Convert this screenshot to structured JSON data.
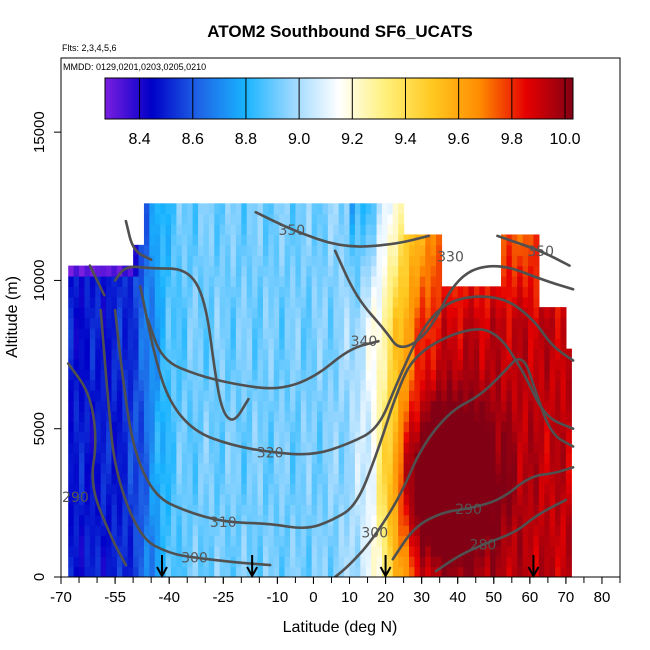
{
  "chart_data": {
    "type": "heatmap",
    "title": "ATOM2 Southbound SF6_UCATS",
    "notes": [
      "Flts: 2,3,4,5,6",
      "MMDD: 0129,0201,0203,0205,0210"
    ],
    "xlabel": "Latitude (deg N)",
    "ylabel": "Altitude (m)",
    "xlim": [
      -70,
      85
    ],
    "ylim": [
      0,
      17500
    ],
    "x_ticks": [
      -70,
      -55,
      -40,
      -25,
      -10,
      0,
      10,
      20,
      30,
      40,
      50,
      60,
      70,
      80
    ],
    "y_ticks": [
      0,
      5000,
      10000,
      15000
    ],
    "colorbar": {
      "ticks": [
        "8.4",
        "8.6",
        "8.8",
        "9.0",
        "9.2",
        "9.4",
        "9.6",
        "9.8",
        "10.0"
      ],
      "range": [
        8.27,
        10.03
      ],
      "placement": "top"
    },
    "colors": {
      "cmap": [
        "#7a1ee0",
        "#0000c8",
        "#1e64e6",
        "#19b4ff",
        "#9ad7ff",
        "#ffffff",
        "#fff07a",
        "#ffc820",
        "#ff8c00",
        "#e60000",
        "#820014"
      ],
      "contour": "#505050",
      "arrow": "#000000"
    },
    "markers_lat": [
      -42,
      -17,
      20,
      61
    ],
    "contours": [
      {
        "label": "350",
        "label_at": [
          -6,
          11700
        ],
        "points": [
          [
            -16,
            12300
          ],
          [
            -6,
            11700
          ],
          [
            8,
            11100
          ],
          [
            22,
            11200
          ],
          [
            32,
            11500
          ]
        ]
      },
      {
        "label": "350",
        "label_at": [
          63,
          11000
        ],
        "points": [
          [
            51,
            11500
          ],
          [
            63,
            11000
          ],
          [
            71,
            10500
          ]
        ]
      },
      {
        "label": "330",
        "label_at": [
          38,
          10800
        ],
        "points": [
          [
            6,
            11000
          ],
          [
            12,
            9400
          ],
          [
            20,
            8300
          ],
          [
            24,
            7600
          ],
          [
            32,
            8200
          ],
          [
            40,
            10200
          ],
          [
            51,
            10600
          ],
          [
            64,
            10000
          ],
          [
            72,
            9700
          ]
        ]
      },
      {
        "label": "340",
        "label_at": [
          14,
          7950
        ],
        "points": [
          [
            -46,
            8700
          ],
          [
            -42,
            7300
          ],
          [
            -32,
            6800
          ],
          [
            -22,
            6500
          ],
          [
            -10,
            6300
          ],
          [
            0,
            6700
          ],
          [
            10,
            7700
          ],
          [
            18,
            7950
          ]
        ]
      },
      {
        "label": "320",
        "label_at": [
          -12,
          4200
        ],
        "points": [
          [
            -48,
            9800
          ],
          [
            -44,
            7400
          ],
          [
            -40,
            5900
          ],
          [
            -33,
            4900
          ],
          [
            -23,
            4450
          ],
          [
            -12,
            4200
          ],
          [
            0,
            4100
          ],
          [
            10,
            4500
          ],
          [
            18,
            5000
          ],
          [
            23,
            6500
          ],
          [
            30,
            8400
          ],
          [
            38,
            9400
          ],
          [
            52,
            9500
          ],
          [
            61,
            8700
          ],
          [
            66,
            7800
          ],
          [
            72,
            7300
          ]
        ]
      },
      {
        "label": "310",
        "label_at": [
          -25,
          1850
        ],
        "points": [
          [
            -55,
            9000
          ],
          [
            -53,
            6800
          ],
          [
            -50,
            4300
          ],
          [
            -44,
            2700
          ],
          [
            -35,
            2200
          ],
          [
            -25,
            1850
          ],
          [
            -12,
            1800
          ],
          [
            -2,
            1600
          ],
          [
            5,
            1900
          ],
          [
            12,
            2400
          ],
          [
            18,
            4300
          ],
          [
            23,
            6200
          ],
          [
            28,
            7500
          ],
          [
            40,
            8300
          ],
          [
            50,
            8400
          ],
          [
            58,
            7000
          ],
          [
            64,
            5400
          ],
          [
            72,
            5000
          ]
        ]
      },
      {
        "label": "300",
        "label_at": [
          -33,
          650
        ],
        "points": [
          [
            -59,
            9000
          ],
          [
            -57,
            6000
          ],
          [
            -55,
            3500
          ],
          [
            -48,
            1300
          ],
          [
            -40,
            800
          ],
          [
            -33,
            650
          ],
          [
            -22,
            500
          ],
          [
            -12,
            400
          ]
        ]
      },
      {
        "label": "300",
        "label_at": [
          17,
          1500
        ],
        "points": [
          [
            6,
            0
          ],
          [
            10,
            400
          ],
          [
            16,
            1200
          ],
          [
            24,
            2700
          ],
          [
            30,
            4400
          ],
          [
            38,
            5600
          ],
          [
            46,
            6100
          ],
          [
            52,
            6800
          ],
          [
            58,
            7600
          ],
          [
            62,
            6100
          ],
          [
            66,
            4800
          ],
          [
            72,
            4400
          ]
        ]
      },
      {
        "label": "290",
        "label_at": [
          -66,
          2700
        ],
        "points": [
          [
            -68,
            7200
          ],
          [
            -62,
            6200
          ],
          [
            -60,
            4600
          ],
          [
            -62,
            3100
          ],
          [
            -56,
            1300
          ],
          [
            -52,
            400
          ]
        ]
      },
      {
        "label": "290",
        "label_at": [
          43,
          2300
        ],
        "points": [
          [
            22,
            600
          ],
          [
            28,
            1700
          ],
          [
            36,
            2200
          ],
          [
            43,
            2300
          ],
          [
            52,
            2600
          ],
          [
            60,
            3400
          ],
          [
            67,
            3500
          ],
          [
            72,
            3700
          ]
        ]
      },
      {
        "label": "280",
        "label_at": [
          47,
          1100
        ],
        "points": [
          [
            34,
            200
          ],
          [
            40,
            700
          ],
          [
            47,
            1100
          ],
          [
            56,
            1500
          ],
          [
            62,
            2100
          ],
          [
            70,
            2600
          ]
        ]
      },
      {
        "label": "",
        "label_at": null,
        "points": [
          [
            -55,
            10000
          ],
          [
            -52,
            10500
          ],
          [
            -45,
            10400
          ],
          [
            -35,
            10400
          ],
          [
            -30,
            9400
          ],
          [
            -27,
            6600
          ],
          [
            -25,
            5500
          ],
          [
            -22,
            5200
          ],
          [
            -18,
            6000
          ]
        ]
      },
      {
        "label": "",
        "label_at": null,
        "points": [
          [
            -62,
            10500
          ],
          [
            -60,
            10000
          ],
          [
            -58,
            9500
          ]
        ]
      },
      {
        "label": "",
        "label_at": null,
        "points": [
          [
            -52,
            12000
          ],
          [
            -50,
            11000
          ],
          [
            -45,
            10700
          ]
        ]
      }
    ]
  }
}
